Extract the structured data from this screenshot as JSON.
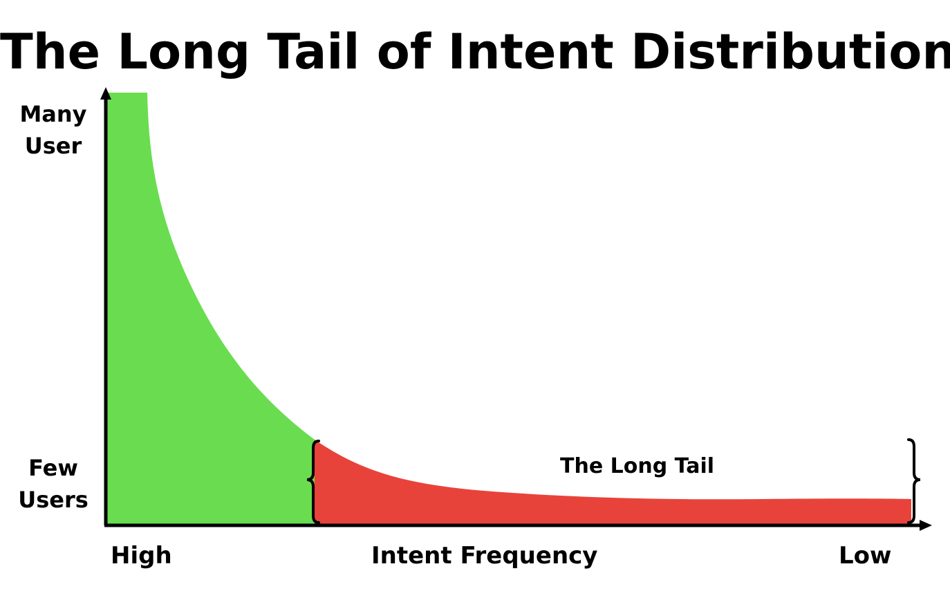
{
  "title": "The Long Tail of Intent Distribution",
  "y_axis": {
    "top_label": [
      "Many",
      "User"
    ],
    "bottom_label": [
      "Few",
      "Users"
    ]
  },
  "x_axis": {
    "left_label": "High",
    "center_label": "Intent Frequency",
    "right_label": "Low"
  },
  "annotation": {
    "label": "The Long Tail"
  },
  "colors": {
    "head": "#69dd4f",
    "tail": "#e8433a",
    "axis": "#000000"
  }
}
